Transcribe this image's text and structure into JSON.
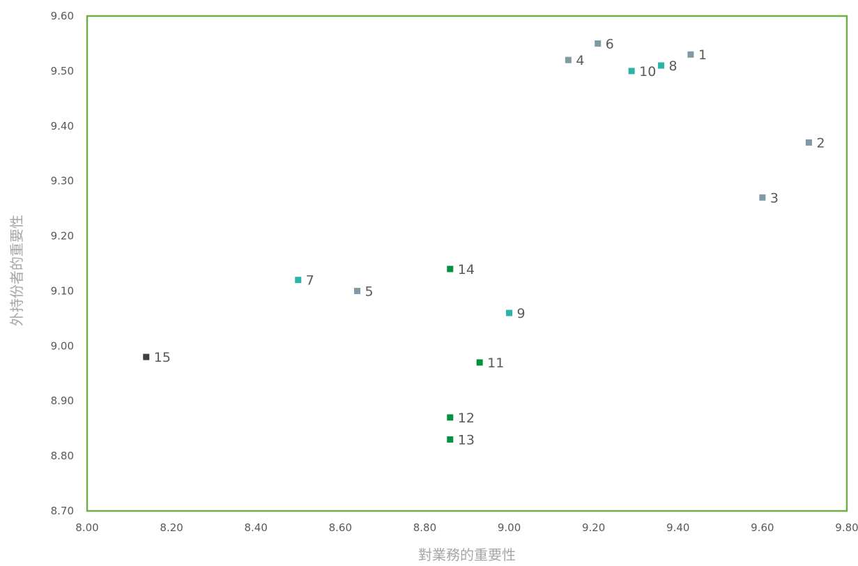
{
  "chart_data": {
    "type": "scatter",
    "title": "",
    "xlabel": "對業務的重要性",
    "ylabel": "外持份者的重要性",
    "xlim": [
      8.0,
      9.8
    ],
    "ylim": [
      8.7,
      9.6
    ],
    "xticks": [
      "8.00",
      "8.20",
      "8.40",
      "8.60",
      "8.80",
      "9.00",
      "9.20",
      "9.40",
      "9.60",
      "9.80"
    ],
    "yticks": [
      "8.70",
      "8.80",
      "8.90",
      "9.00",
      "9.10",
      "9.20",
      "9.30",
      "9.40",
      "9.50",
      "9.60"
    ],
    "grid": false,
    "frame_color": "#70ad47",
    "points": [
      {
        "label": "1",
        "x": 9.43,
        "y": 9.53,
        "color": "#7f9aa4"
      },
      {
        "label": "2",
        "x": 9.71,
        "y": 9.37,
        "color": "#7f9aa4"
      },
      {
        "label": "3",
        "x": 9.6,
        "y": 9.27,
        "color": "#7f9aa4"
      },
      {
        "label": "4",
        "x": 9.14,
        "y": 9.52,
        "color": "#7f9aa4"
      },
      {
        "label": "5",
        "x": 8.64,
        "y": 9.1,
        "color": "#7f9aa4"
      },
      {
        "label": "6",
        "x": 9.21,
        "y": 9.55,
        "color": "#7f9aa4"
      },
      {
        "label": "7",
        "x": 8.5,
        "y": 9.12,
        "color": "#2ab3a6"
      },
      {
        "label": "8",
        "x": 9.36,
        "y": 9.51,
        "color": "#2ab3a6"
      },
      {
        "label": "9",
        "x": 9.0,
        "y": 9.06,
        "color": "#2ab3a6"
      },
      {
        "label": "10",
        "x": 9.29,
        "y": 9.5,
        "color": "#2ab3a6"
      },
      {
        "label": "11",
        "x": 8.93,
        "y": 8.97,
        "color": "#00923f"
      },
      {
        "label": "12",
        "x": 8.86,
        "y": 8.87,
        "color": "#00923f"
      },
      {
        "label": "13",
        "x": 8.86,
        "y": 8.83,
        "color": "#00923f"
      },
      {
        "label": "14",
        "x": 8.86,
        "y": 9.14,
        "color": "#00923f"
      },
      {
        "label": "15",
        "x": 8.14,
        "y": 8.98,
        "color": "#404040"
      }
    ]
  }
}
